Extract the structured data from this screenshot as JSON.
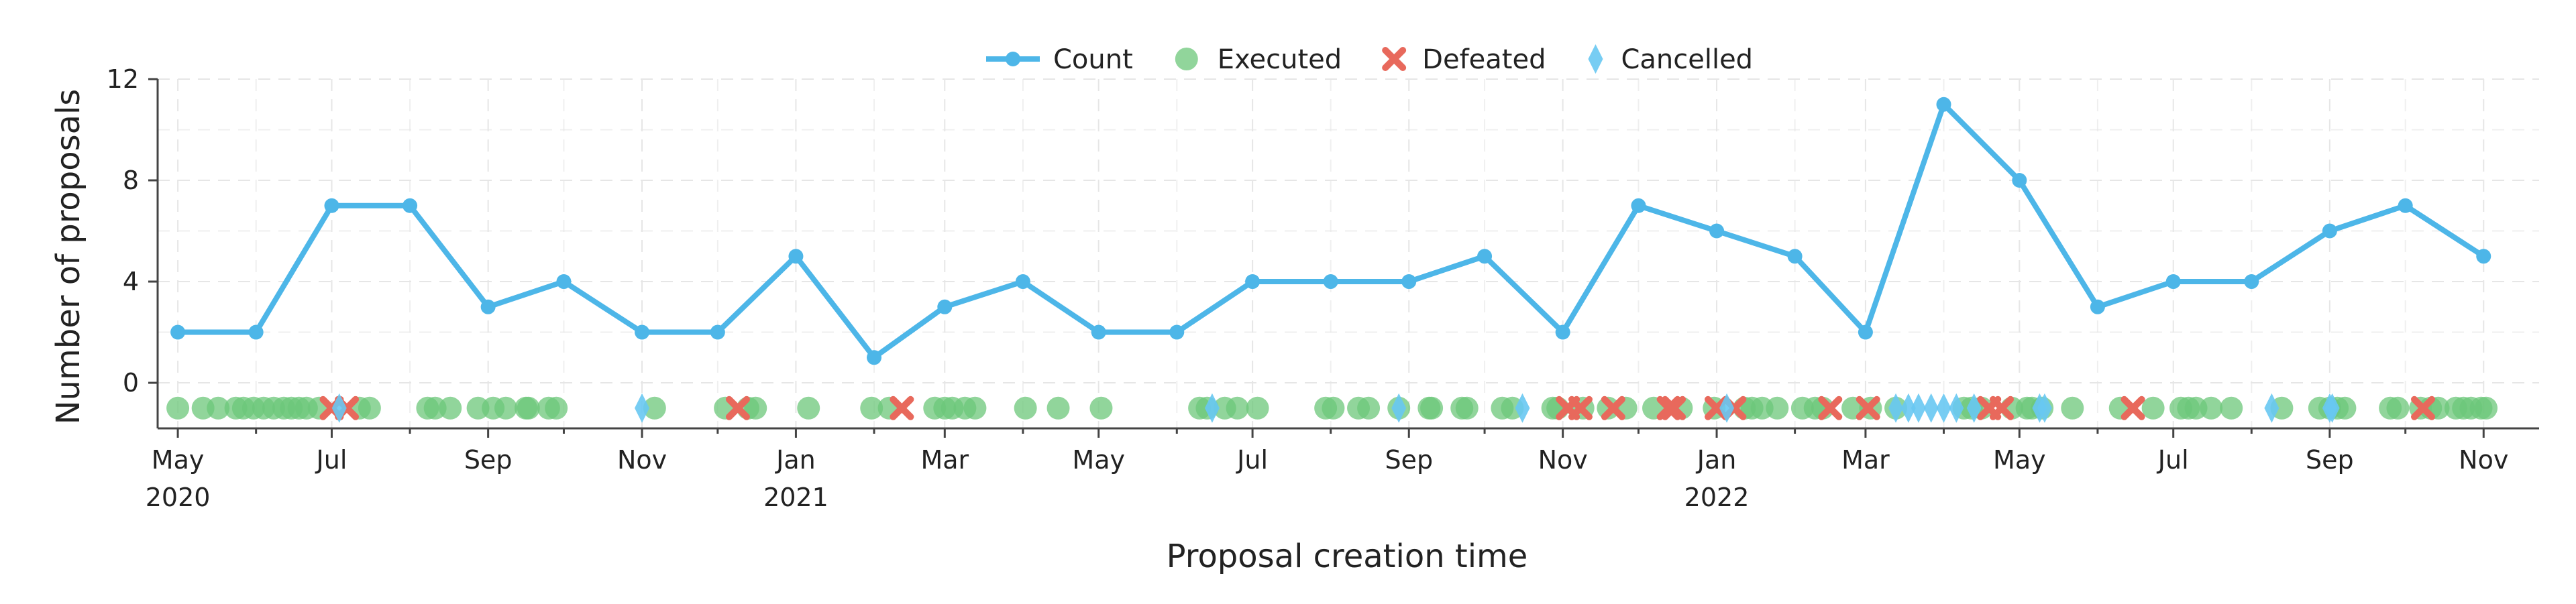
{
  "chart_data": {
    "type": "line",
    "xlabel": "Proposal creation time",
    "ylabel": "Number of proposals",
    "ylim": [
      -1.8,
      12
    ],
    "xlim": [
      "2020-04-23",
      "2022-11-23"
    ],
    "grid": true,
    "legend_position": "top-center",
    "y_ticks": [
      0,
      4,
      8,
      12
    ],
    "x_ticks": [
      {
        "date": "2020-05-01",
        "label": "May",
        "year": "2020"
      },
      {
        "date": "2020-07-01",
        "label": "Jul",
        "year": ""
      },
      {
        "date": "2020-09-01",
        "label": "Sep",
        "year": ""
      },
      {
        "date": "2020-11-01",
        "label": "Nov",
        "year": ""
      },
      {
        "date": "2021-01-01",
        "label": "Jan",
        "year": "2021"
      },
      {
        "date": "2021-03-01",
        "label": "Mar",
        "year": ""
      },
      {
        "date": "2021-05-01",
        "label": "May",
        "year": ""
      },
      {
        "date": "2021-07-01",
        "label": "Jul",
        "year": ""
      },
      {
        "date": "2021-09-01",
        "label": "Sep",
        "year": ""
      },
      {
        "date": "2021-11-01",
        "label": "Nov",
        "year": ""
      },
      {
        "date": "2022-01-01",
        "label": "Jan",
        "year": "2022"
      },
      {
        "date": "2022-03-01",
        "label": "Mar",
        "year": ""
      },
      {
        "date": "2022-05-01",
        "label": "May",
        "year": ""
      },
      {
        "date": "2022-07-01",
        "label": "Jul",
        "year": ""
      },
      {
        "date": "2022-09-01",
        "label": "Sep",
        "year": ""
      },
      {
        "date": "2022-11-01",
        "label": "Nov",
        "year": ""
      }
    ],
    "series": [
      {
        "name": "Count",
        "kind": "line",
        "color": "#4db6e8",
        "x": [
          "2020-05-01",
          "2020-06-01",
          "2020-07-01",
          "2020-08-01",
          "2020-09-01",
          "2020-10-01",
          "2020-11-01",
          "2020-12-01",
          "2021-01-01",
          "2021-02-01",
          "2021-03-01",
          "2021-04-01",
          "2021-05-01",
          "2021-06-01",
          "2021-07-01",
          "2021-08-01",
          "2021-09-01",
          "2021-10-01",
          "2021-11-01",
          "2021-12-01",
          "2022-01-01",
          "2022-02-01",
          "2022-03-01",
          "2022-04-01",
          "2022-05-01",
          "2022-06-01",
          "2022-07-01",
          "2022-08-01",
          "2022-09-01",
          "2022-10-01",
          "2022-11-01"
        ],
        "values": [
          2,
          2,
          7,
          7,
          3,
          4,
          2,
          2,
          5,
          1,
          3,
          4,
          2,
          2,
          4,
          4,
          4,
          5,
          2,
          7,
          6,
          5,
          2,
          11,
          8,
          3,
          4,
          4,
          6,
          7,
          5
        ]
      },
      {
        "name": "Executed",
        "kind": "scatter",
        "marker": "circle",
        "color": "#6cc77a",
        "y": -1,
        "x": [
          "2020-05-01",
          "2020-05-11",
          "2020-05-17",
          "2020-05-24",
          "2020-05-27",
          "2020-05-31",
          "2020-06-04",
          "2020-06-08",
          "2020-06-12",
          "2020-06-15",
          "2020-06-18",
          "2020-06-21",
          "2020-06-26",
          "2020-07-12",
          "2020-07-16",
          "2020-08-08",
          "2020-08-11",
          "2020-08-17",
          "2020-08-28",
          "2020-09-03",
          "2020-09-08",
          "2020-09-16",
          "2020-09-17",
          "2020-09-25",
          "2020-09-28",
          "2020-11-06",
          "2020-12-04",
          "2020-12-13",
          "2020-12-16",
          "2021-01-06",
          "2021-01-31",
          "2021-02-07",
          "2021-02-25",
          "2021-03-01",
          "2021-03-04",
          "2021-03-09",
          "2021-03-13",
          "2021-04-02",
          "2021-04-15",
          "2021-05-02",
          "2021-06-10",
          "2021-06-13",
          "2021-06-20",
          "2021-06-25",
          "2021-07-03",
          "2021-07-30",
          "2021-08-02",
          "2021-08-12",
          "2021-08-16",
          "2021-08-28",
          "2021-09-09",
          "2021-09-10",
          "2021-09-22",
          "2021-09-24",
          "2021-10-08",
          "2021-10-12",
          "2021-10-28",
          "2021-10-30",
          "2021-11-09",
          "2021-11-19",
          "2021-11-26",
          "2021-12-07",
          "2021-12-18",
          "2021-12-31",
          "2022-01-12",
          "2022-01-15",
          "2022-01-19",
          "2022-01-25",
          "2022-02-04",
          "2022-02-09",
          "2022-02-12",
          "2022-02-24",
          "2022-03-03",
          "2022-03-13",
          "2022-04-09",
          "2022-04-12",
          "2022-04-16",
          "2022-04-28",
          "2022-05-04",
          "2022-05-06",
          "2022-05-10",
          "2022-05-22",
          "2022-06-10",
          "2022-06-23",
          "2022-07-04",
          "2022-07-07",
          "2022-07-10",
          "2022-07-16",
          "2022-07-24",
          "2022-08-13",
          "2022-08-28",
          "2022-09-01",
          "2022-09-04",
          "2022-09-07",
          "2022-09-25",
          "2022-09-28",
          "2022-10-07",
          "2022-10-11",
          "2022-10-14",
          "2022-10-21",
          "2022-10-24",
          "2022-10-27",
          "2022-10-31",
          "2022-11-02"
        ]
      },
      {
        "name": "Defeated",
        "kind": "scatter",
        "marker": "x",
        "color": "#e8695c",
        "y": -1,
        "x": [
          "2020-07-01",
          "2020-07-07",
          "2020-12-09",
          "2021-02-12",
          "2021-11-03",
          "2021-11-08",
          "2021-11-21",
          "2021-12-13",
          "2021-12-15",
          "2022-01-01",
          "2022-01-08",
          "2022-02-15",
          "2022-03-02",
          "2022-04-19",
          "2022-04-24",
          "2022-06-15",
          "2022-10-08"
        ]
      },
      {
        "name": "Cancelled",
        "kind": "scatter",
        "marker": "diamond",
        "color": "#68c8f2",
        "y": -1,
        "x": [
          "2020-07-04",
          "2020-11-01",
          "2021-06-15",
          "2021-08-28",
          "2021-10-16",
          "2022-01-05",
          "2022-03-13",
          "2022-03-18",
          "2022-03-22",
          "2022-03-27",
          "2022-04-01",
          "2022-04-06",
          "2022-04-13",
          "2022-05-09",
          "2022-05-11",
          "2022-08-09",
          "2022-09-01",
          "2022-09-02"
        ]
      }
    ]
  }
}
